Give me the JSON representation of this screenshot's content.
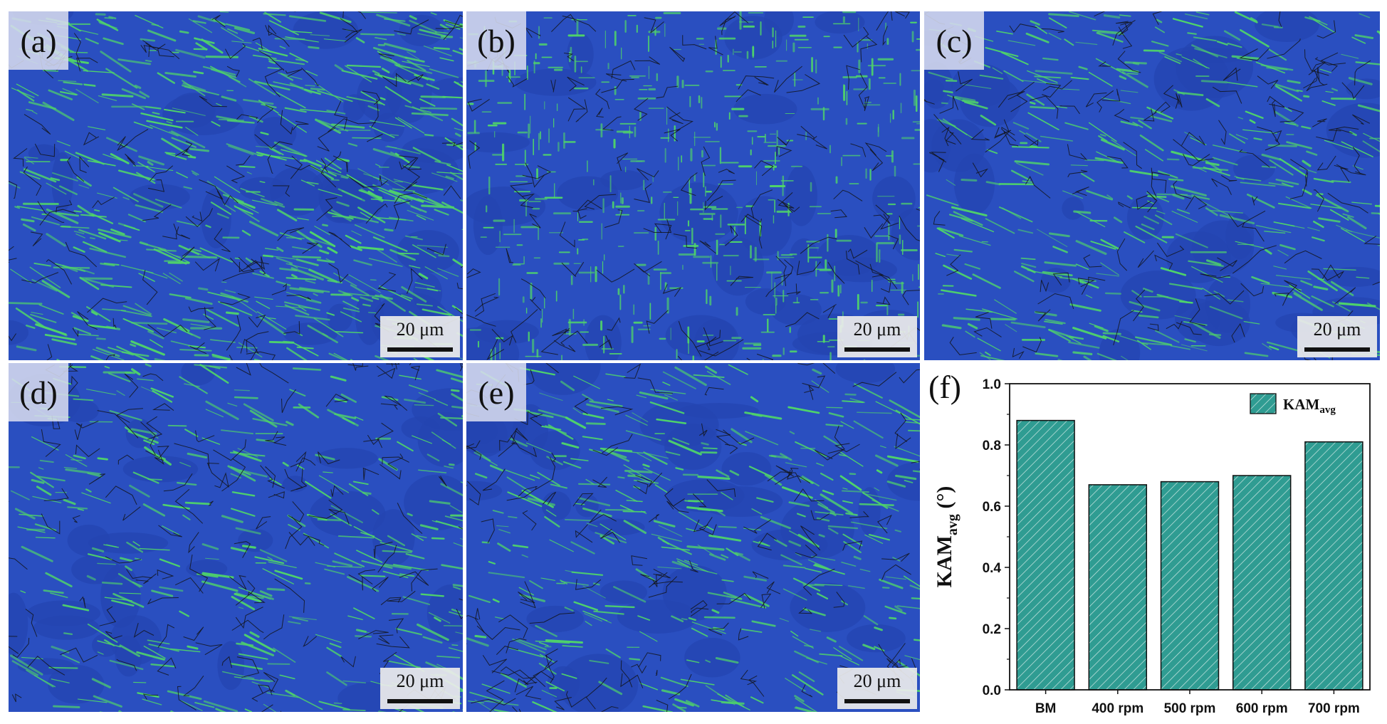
{
  "panels": [
    {
      "id": "a",
      "label": "(a)",
      "scale": "20 μm"
    },
    {
      "id": "b",
      "label": "(b)",
      "scale": "20 μm"
    },
    {
      "id": "c",
      "label": "(c)",
      "scale": "20 μm"
    },
    {
      "id": "d",
      "label": "(d)",
      "scale": "20 μm"
    },
    {
      "id": "e",
      "label": "(e)",
      "scale": "20 μm"
    }
  ],
  "map_colors": {
    "background": "#2a4fc0",
    "strain": "#4fd46a",
    "grain_boundary": "#111111"
  },
  "chart_data": {
    "type": "bar",
    "panel_label": "(f)",
    "categories": [
      "BM",
      "400 rpm",
      "500 rpm",
      "600 rpm",
      "700 rpm"
    ],
    "series": [
      {
        "name": "KAM",
        "name_sub": "avg",
        "values": [
          0.88,
          0.67,
          0.68,
          0.7,
          0.81
        ]
      }
    ],
    "ylabel": "KAM",
    "ylabel_sub": "avg",
    "ylabel_unit": " (°)",
    "ylim": [
      0.0,
      1.0
    ],
    "yticks": [
      "0.0",
      "0.2",
      "0.4",
      "0.6",
      "0.8",
      "1.0"
    ],
    "legend_position": "top-right",
    "bar_color": "#2f9c92"
  }
}
